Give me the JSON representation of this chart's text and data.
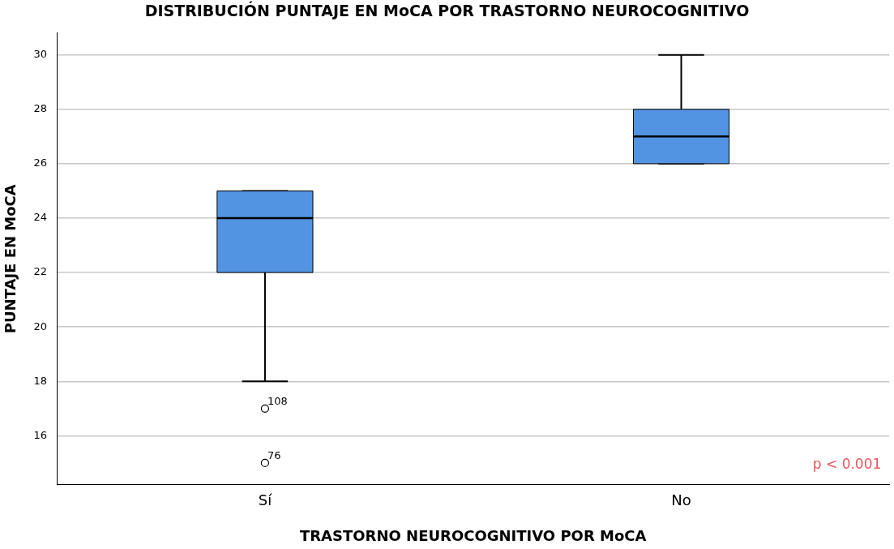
{
  "chart_data": {
    "type": "box",
    "title": "DISTRIBUCIÓN PUNTAJE EN MoCA POR TRASTORNO NEUROCOGNITIVO",
    "xlabel": "TRASTORNO NEUROCOGNITIVO POR MoCA",
    "ylabel": "PUNTAJE EN MoCA",
    "categories": [
      "Sí",
      "No"
    ],
    "boxes": [
      {
        "low": 18,
        "q1": 22,
        "median": 24,
        "q3": 25,
        "high": 25,
        "outliers": [
          17,
          15
        ]
      },
      {
        "low": 26,
        "q1": 26,
        "median": 27,
        "q3": 28,
        "high": 30
      }
    ],
    "color": "#5294e2",
    "ylim": [
      14.2,
      30.8
    ],
    "yticks": [
      16,
      18,
      20,
      22,
      24,
      26,
      28,
      30
    ],
    "grid": "y",
    "legend": false,
    "marker": "circle",
    "annotations": [
      "108",
      "76",
      "p < 0.001"
    ]
  }
}
